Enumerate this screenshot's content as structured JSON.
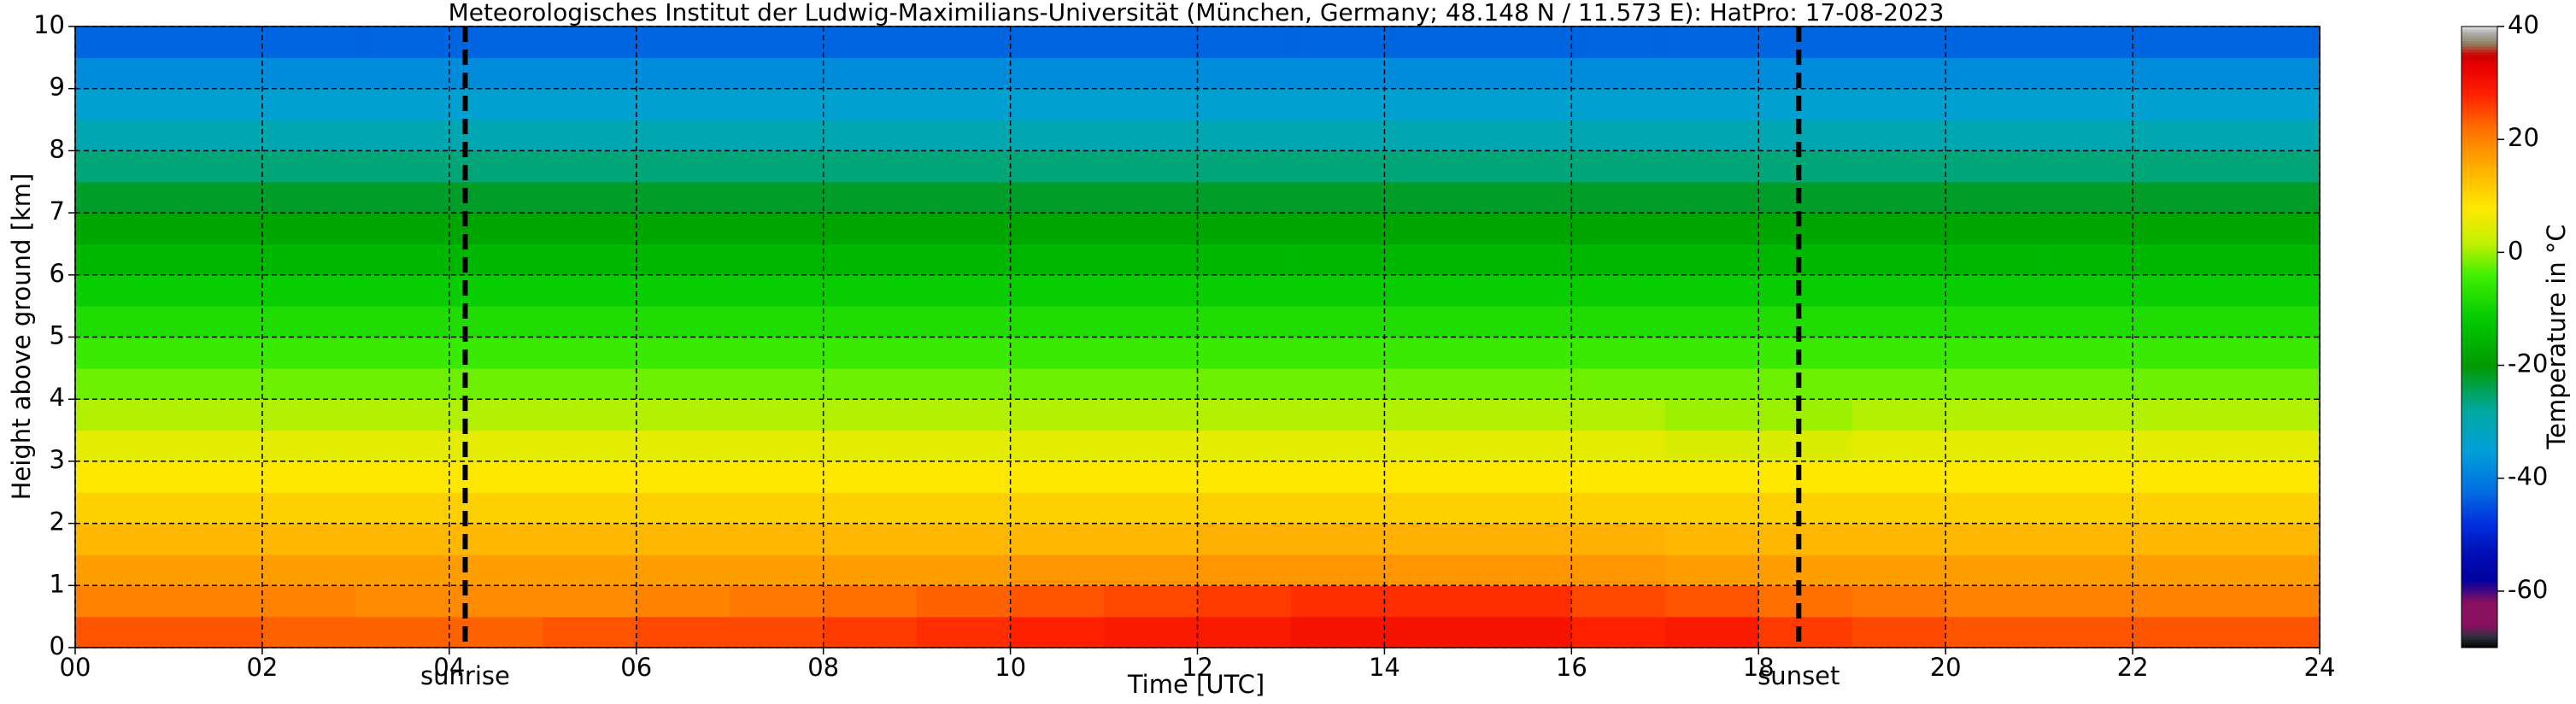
{
  "chart_data": {
    "type": "heatmap",
    "title": "Meteorologisches Institut der Ludwig-Maximilians-Universität (München, Germany; 48.148 N / 11.573 E):    HatPro: 17-08-2023",
    "x_label": "Time [UTC]",
    "y_label": "Height above ground [km]",
    "colorbar_label": "Temperature in °C",
    "xlim": [
      0,
      24
    ],
    "ylim": [
      0,
      10
    ],
    "clim": [
      -70,
      40
    ],
    "xticks": [
      {
        "value": 0,
        "label": "00"
      },
      {
        "value": 2,
        "label": "02"
      },
      {
        "value": 4,
        "label": "04"
      },
      {
        "value": 6,
        "label": "06"
      },
      {
        "value": 8,
        "label": "08"
      },
      10,
      12,
      14,
      16,
      18,
      20,
      22,
      24
    ],
    "yticks": [
      0,
      1,
      2,
      3,
      4,
      5,
      6,
      7,
      8,
      9,
      10
    ],
    "cticks": [
      -60,
      -40,
      -20,
      0,
      20,
      40
    ],
    "grid": true,
    "annotations": [
      {
        "x": 4.17,
        "text": "sunrise"
      },
      {
        "x": 18.43,
        "text": "sunset"
      }
    ],
    "colormap": {
      "values": [
        -70,
        -68,
        -66,
        -62,
        -58,
        -53,
        -48,
        -42,
        -35,
        -28,
        -20,
        -12,
        -4,
        2,
        8,
        15,
        22,
        28,
        33,
        35,
        37,
        39,
        40
      ],
      "colors": [
        "#000000",
        "#303040",
        "#8a1060",
        "#8a1060",
        "#0000a0",
        "#0010b8",
        "#0030e0",
        "#0070e0",
        "#00a0d8",
        "#00a8a0",
        "#009a00",
        "#00c800",
        "#40f000",
        "#c8f000",
        "#ffe800",
        "#ffb000",
        "#ff7000",
        "#ff2000",
        "#e80000",
        "#cc0000",
        "#908060",
        "#b0b0b0",
        "#e0e0e0"
      ]
    },
    "xbins": [
      0,
      1,
      2,
      3,
      4,
      5,
      6,
      7,
      8,
      9,
      10,
      11,
      12,
      13,
      14,
      15,
      16,
      17,
      18,
      19,
      20,
      21,
      22,
      23,
      24
    ],
    "ybins": [
      0,
      0.5,
      1,
      1.5,
      2,
      2.5,
      3,
      3.5,
      4,
      4.5,
      5,
      5.5,
      6,
      6.5,
      7,
      7.5,
      8,
      8.5,
      9,
      9.5,
      10
    ],
    "z": [
      [
        24,
        24,
        23,
        23,
        23,
        24,
        25,
        25,
        26,
        27,
        28,
        29,
        29,
        30,
        30,
        30,
        28,
        29,
        26,
        25,
        24,
        24,
        24,
        24
      ],
      [
        20,
        20,
        20,
        19,
        19,
        19,
        20,
        21,
        22,
        23,
        24,
        25,
        26,
        27,
        27,
        27,
        25,
        24,
        22,
        21,
        20,
        20,
        20,
        20
      ],
      [
        17,
        17,
        17,
        17,
        17,
        17,
        17,
        17,
        17,
        17,
        18,
        18,
        18,
        18,
        18,
        18,
        18,
        17,
        17,
        17,
        17,
        17,
        17,
        17
      ],
      [
        14,
        14,
        14,
        14,
        14,
        14,
        14,
        14,
        14,
        14,
        14,
        14,
        15,
        15,
        15,
        15,
        15,
        14,
        14,
        14,
        14,
        14,
        14,
        14
      ],
      [
        11,
        11,
        11,
        11,
        11,
        11,
        11,
        11,
        11,
        11,
        11,
        11,
        11,
        11,
        11,
        11,
        11,
        11,
        11,
        11,
        11,
        11,
        11,
        11
      ],
      [
        8,
        8,
        8,
        8,
        8,
        8,
        8,
        8,
        8,
        8,
        8,
        8,
        8,
        8,
        8,
        8,
        8,
        8,
        8,
        8,
        8,
        8,
        8,
        8
      ],
      [
        5,
        5,
        5,
        5,
        5,
        5,
        5,
        5,
        5,
        5,
        5,
        5,
        5,
        5,
        5,
        5,
        5,
        4,
        4,
        5,
        5,
        5,
        5,
        5
      ],
      [
        1,
        1,
        1,
        1,
        1,
        1,
        1,
        1,
        1,
        1,
        1,
        1,
        1,
        1,
        1,
        1,
        1,
        0,
        0,
        1,
        1,
        1,
        1,
        1
      ],
      [
        -2,
        -2,
        -2,
        -2,
        -2,
        -2,
        -2,
        -2,
        -2,
        -2,
        -2,
        -2,
        -2,
        -2,
        -2,
        -2,
        -2,
        -2,
        -2,
        -2,
        -2,
        -2,
        -2,
        -2
      ],
      [
        -5,
        -5,
        -5,
        -5,
        -5,
        -5,
        -5,
        -5,
        -5,
        -5,
        -5,
        -5,
        -5,
        -5,
        -5,
        -5,
        -5,
        -5,
        -5,
        -5,
        -5,
        -5,
        -5,
        -5
      ],
      [
        -8,
        -8,
        -8,
        -8,
        -8,
        -8,
        -8,
        -8,
        -8,
        -8,
        -8,
        -8,
        -8,
        -8,
        -8,
        -8,
        -8,
        -8,
        -8,
        -8,
        -8,
        -8,
        -8,
        -8
      ],
      [
        -11,
        -11,
        -11,
        -11,
        -11,
        -11,
        -11,
        -11,
        -11,
        -11,
        -11,
        -11,
        -11,
        -11,
        -11,
        -11,
        -11,
        -11,
        -11,
        -11,
        -11,
        -11,
        -11,
        -11
      ],
      [
        -15,
        -15,
        -15,
        -15,
        -15,
        -15,
        -15,
        -15,
        -15,
        -15,
        -15,
        -15,
        -15,
        -15,
        -15,
        -15,
        -15,
        -15,
        -15,
        -15,
        -15,
        -15,
        -15,
        -15
      ],
      [
        -18,
        -18,
        -18,
        -18,
        -18,
        -18,
        -18,
        -18,
        -18,
        -18,
        -18,
        -18,
        -18,
        -18,
        -18,
        -18,
        -18,
        -18,
        -18,
        -18,
        -18,
        -18,
        -18,
        -18
      ],
      [
        -22,
        -22,
        -22,
        -22,
        -22,
        -22,
        -22,
        -22,
        -22,
        -22,
        -22,
        -22,
        -22,
        -22,
        -22,
        -22,
        -22,
        -22,
        -22,
        -22,
        -22,
        -22,
        -22,
        -22
      ],
      [
        -26,
        -26,
        -26,
        -26,
        -26,
        -26,
        -26,
        -26,
        -26,
        -26,
        -26,
        -26,
        -26,
        -26,
        -26,
        -26,
        -26,
        -26,
        -26,
        -26,
        -26,
        -26,
        -26,
        -26
      ],
      [
        -30,
        -30,
        -30,
        -30,
        -30,
        -30,
        -30,
        -30,
        -30,
        -30,
        -30,
        -30,
        -30,
        -30,
        -30,
        -30,
        -30,
        -30,
        -30,
        -30,
        -30,
        -30,
        -30,
        -30
      ],
      [
        -34,
        -34,
        -34,
        -34,
        -34,
        -34,
        -34,
        -34,
        -34,
        -34,
        -34,
        -34,
        -34,
        -34,
        -34,
        -34,
        -34,
        -34,
        -34,
        -34,
        -34,
        -34,
        -34,
        -34
      ],
      [
        -38,
        -38,
        -38,
        -38,
        -38,
        -38,
        -38,
        -38,
        -38,
        -38,
        -38,
        -38,
        -38,
        -38,
        -38,
        -38,
        -38,
        -38,
        -38,
        -38,
        -38,
        -38,
        -38,
        -38
      ],
      [
        -43,
        -43,
        -43,
        -43,
        -43,
        -43,
        -43,
        -43,
        -43,
        -43,
        -43,
        -43,
        -43,
        -43,
        -43,
        -43,
        -43,
        -43,
        -43,
        -43,
        -43,
        -43,
        -43,
        -43
      ]
    ]
  }
}
